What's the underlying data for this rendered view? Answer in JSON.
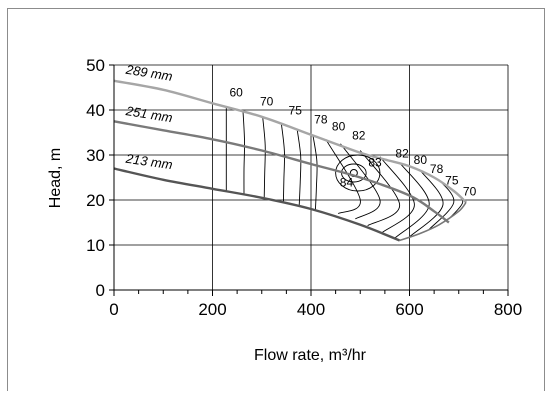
{
  "chart_data": {
    "type": "line",
    "title": "",
    "xlabel": "Flow rate, m³/hr",
    "ylabel": "Head, m",
    "xlim": [
      0,
      800
    ],
    "ylim": [
      0,
      50
    ],
    "x_ticks": [
      "0",
      "200",
      "400",
      "600",
      "800"
    ],
    "y_ticks": [
      "0",
      "10",
      "20",
      "30",
      "40",
      "50"
    ],
    "grid": true,
    "series": [
      {
        "name": "289 mm",
        "color": "#a6a6a6",
        "points": [
          [
            0,
            46.5
          ],
          [
            100,
            44.5
          ],
          [
            200,
            41.5
          ],
          [
            300,
            38.5
          ],
          [
            400,
            34.5
          ],
          [
            500,
            30.5
          ],
          [
            550,
            29
          ],
          [
            600,
            27.5
          ],
          [
            650,
            25
          ],
          [
            690,
            22
          ],
          [
            715,
            19.5
          ]
        ]
      },
      {
        "name": "251 mm",
        "color": "#7a7a7a",
        "points": [
          [
            0,
            37.5
          ],
          [
            100,
            35.5
          ],
          [
            200,
            33.5
          ],
          [
            300,
            31
          ],
          [
            400,
            28
          ],
          [
            500,
            25
          ],
          [
            600,
            21
          ],
          [
            650,
            17.5
          ],
          [
            680,
            15
          ]
        ]
      },
      {
        "name": "213 mm",
        "color": "#555555",
        "points": [
          [
            0,
            27
          ],
          [
            100,
            24.5
          ],
          [
            200,
            22.5
          ],
          [
            300,
            20.5
          ],
          [
            400,
            18
          ],
          [
            500,
            14.5
          ],
          [
            580,
            11
          ]
        ]
      }
    ],
    "lower_boundary": [
      [
        0,
        27
      ],
      [
        100,
        24.5
      ],
      [
        200,
        22.5
      ],
      [
        300,
        20.5
      ],
      [
        400,
        18
      ],
      [
        500,
        14.5
      ],
      [
        580,
        11
      ],
      [
        620,
        12.5
      ],
      [
        660,
        14.5
      ],
      [
        700,
        17.5
      ],
      [
        715,
        19.5
      ]
    ],
    "efficiency_labels": [
      {
        "text": "60",
        "x": 248,
        "y": 43
      },
      {
        "text": "70",
        "x": 310,
        "y": 41
      },
      {
        "text": "75",
        "x": 368,
        "y": 39
      },
      {
        "text": "78",
        "x": 420,
        "y": 37
      },
      {
        "text": "80",
        "x": 456,
        "y": 35.5
      },
      {
        "text": "82",
        "x": 497,
        "y": 33.5
      },
      {
        "text": "82",
        "x": 585,
        "y": 29.5
      },
      {
        "text": "80",
        "x": 622,
        "y": 28
      },
      {
        "text": "78",
        "x": 655,
        "y": 26
      },
      {
        "text": "75",
        "x": 686,
        "y": 23.5
      },
      {
        "text": "70",
        "x": 722,
        "y": 21
      },
      {
        "text": "83",
        "x": 530,
        "y": 27.5
      },
      {
        "text": "84",
        "x": 472,
        "y": 23
      }
    ],
    "best_efficiency_point": {
      "x": 487,
      "y": 26
    }
  }
}
